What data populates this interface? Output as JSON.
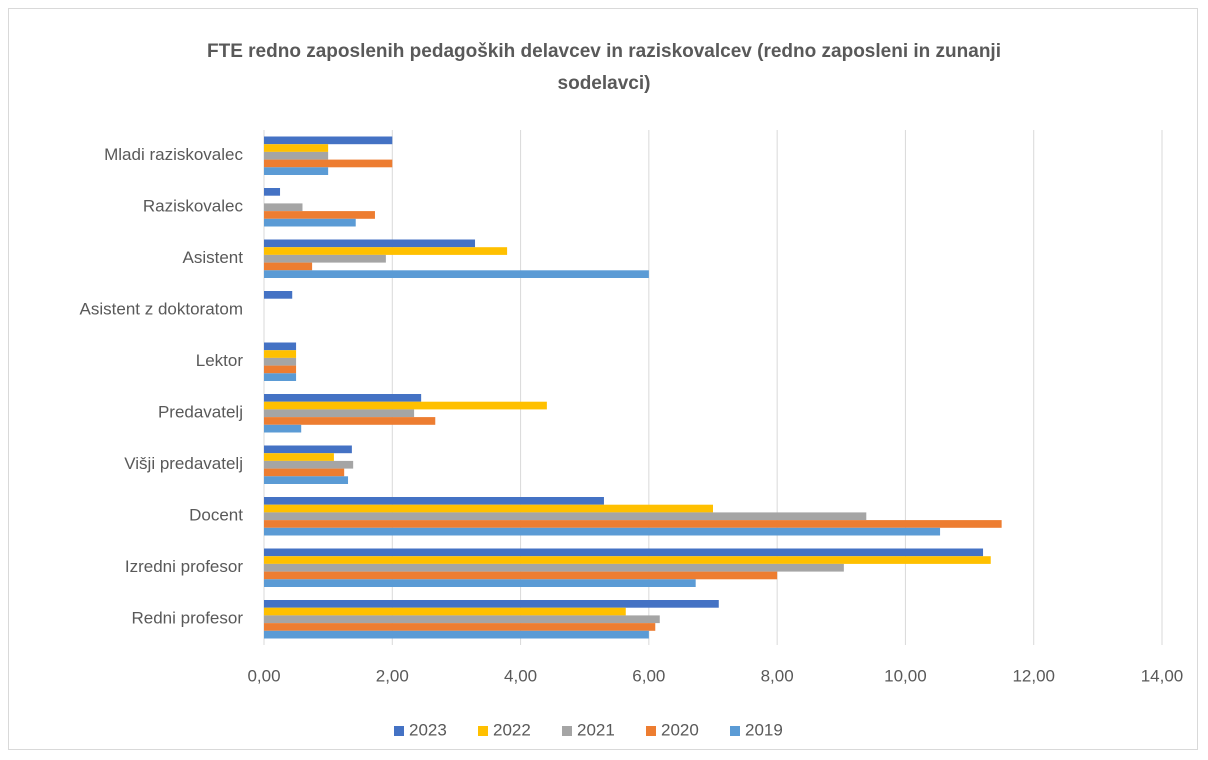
{
  "chart_data": {
    "type": "hbar",
    "title": "FTE redno zaposlenih pedagoških delavcev in raziskovalcev (redno zaposleni in zunanji sodelavci)",
    "categories": [
      "Mladi raziskovalec",
      "Raziskovalec",
      "Asistent",
      "Asistent z doktoratom",
      "Lektor",
      "Predavatelj",
      "Višji predavatelj",
      "Docent",
      "Izredni profesor",
      "Redni profesor"
    ],
    "series": [
      {
        "name": "2023",
        "color": "#4472c4",
        "values": [
          2.0,
          0.25,
          3.29,
          0.44,
          0.5,
          2.45,
          1.37,
          5.3,
          11.21,
          7.09
        ]
      },
      {
        "name": "2022",
        "color": "#ffc000",
        "values": [
          1.0,
          0,
          3.79,
          0,
          0.5,
          4.41,
          1.09,
          7.0,
          11.33,
          5.64
        ]
      },
      {
        "name": "2021",
        "color": "#a5a5a5",
        "values": [
          1.0,
          0.6,
          1.9,
          0,
          0.5,
          2.34,
          1.39,
          9.39,
          9.04,
          6.17
        ]
      },
      {
        "name": "2020",
        "color": "#ed7d31",
        "values": [
          2.0,
          1.73,
          0.75,
          0,
          0.5,
          2.67,
          1.25,
          11.5,
          8.0,
          6.1
        ]
      },
      {
        "name": "2019",
        "color": "#5b9bd5",
        "values": [
          1.0,
          1.43,
          6.0,
          0,
          0.5,
          0.58,
          1.31,
          10.54,
          6.73,
          6.0
        ]
      }
    ],
    "xlim": [
      0,
      14
    ],
    "xticks": [
      {
        "value": 0,
        "label": "0,00"
      },
      {
        "value": 2,
        "label": "2,00"
      },
      {
        "value": 4,
        "label": "4,00"
      },
      {
        "value": 6,
        "label": "6,00"
      },
      {
        "value": 8,
        "label": "8,00"
      },
      {
        "value": 10,
        "label": "10,00"
      },
      {
        "value": 12,
        "label": "12,00"
      },
      {
        "value": 14,
        "label": "14,00"
      }
    ],
    "grid": true,
    "legend": "bottom"
  }
}
